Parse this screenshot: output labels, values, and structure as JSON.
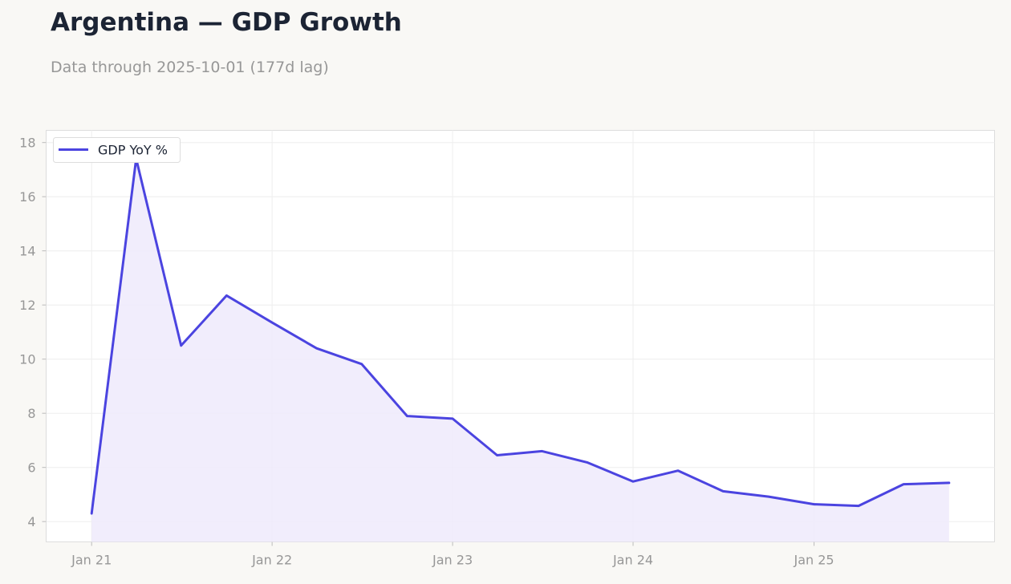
{
  "title": "Argentina — GDP Growth",
  "subtitle": "Data through 2025-10-01 (177d lag)",
  "colors": {
    "line": "#4b44e0",
    "fill": "#eeeafb",
    "grid": "#eeeeee",
    "axis_text": "#979797",
    "background": "#f9f8f5",
    "plot_background": "#ffffff"
  },
  "chart_data": {
    "type": "area",
    "title": "Argentina — GDP Growth",
    "xlabel": "",
    "ylabel": "",
    "x": [
      "2021-01-01",
      "2021-04-01",
      "2021-07-01",
      "2021-10-01",
      "2022-01-01",
      "2022-04-01",
      "2022-07-01",
      "2022-10-01",
      "2023-01-01",
      "2023-04-01",
      "2023-07-01",
      "2023-10-01",
      "2024-01-01",
      "2024-04-01",
      "2024-07-01",
      "2024-10-01",
      "2025-01-01",
      "2025-04-01",
      "2025-07-01",
      "2025-10-01"
    ],
    "series": [
      {
        "name": "GDP YoY %",
        "values": [
          4.3,
          17.4,
          10.5,
          12.35,
          11.35,
          10.4,
          9.82,
          7.9,
          7.8,
          6.45,
          6.6,
          6.18,
          5.48,
          5.88,
          5.12,
          4.92,
          4.64,
          4.58,
          5.38,
          5.43
        ]
      }
    ],
    "x_tick_labels": [
      "Jan 21",
      "Jan 22",
      "Jan 23",
      "Jan 24",
      "Jan 25"
    ],
    "x_tick_values": [
      "2021-01-01",
      "2022-01-01",
      "2023-01-01",
      "2024-01-01",
      "2025-01-01"
    ],
    "y_ticks": [
      4,
      6,
      8,
      10,
      12,
      14,
      16,
      18
    ],
    "ylim": [
      3.25,
      18.45
    ],
    "xlim": [
      "2020-10-01",
      "2026-01-01"
    ],
    "grid": true,
    "legend_position": "top-left"
  }
}
